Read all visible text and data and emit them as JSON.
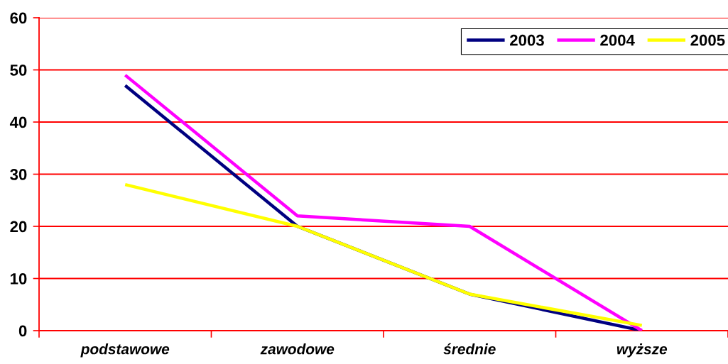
{
  "chart_data": {
    "type": "line",
    "categories": [
      "podstawowe",
      "zawodowe",
      "średnie",
      "wyższe"
    ],
    "series": [
      {
        "name": "2003",
        "color": "#000080",
        "values": [
          47,
          20,
          7,
          0
        ]
      },
      {
        "name": "2004",
        "color": "#ff00ff",
        "values": [
          49,
          22,
          20,
          0
        ]
      },
      {
        "name": "2005",
        "color": "#ffff00",
        "values": [
          28,
          20,
          7,
          1
        ]
      }
    ],
    "ylim": [
      0,
      60
    ],
    "yticks": [
      0,
      10,
      20,
      30,
      40,
      50,
      60
    ],
    "grid": "y",
    "legend": "top right"
  }
}
